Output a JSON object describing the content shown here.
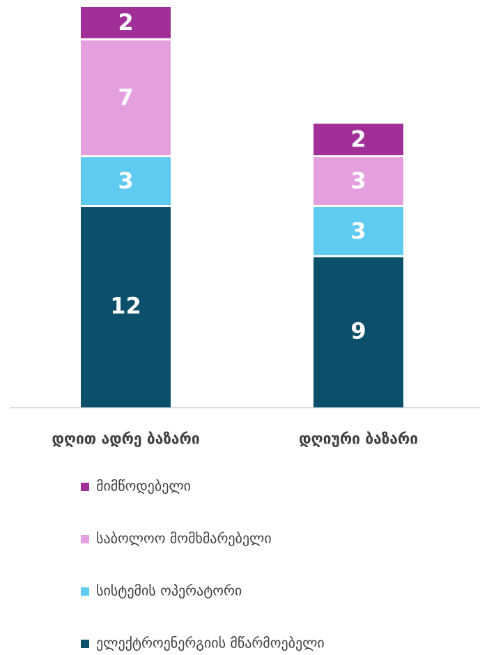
{
  "chart_data": {
    "type": "stacked_bar",
    "categories": [
      "დღით ადრე ბაზარი",
      "დღიური ბაზარი"
    ],
    "series": [
      {
        "name": "ელექტროენერგიის მწარმოებელი",
        "color": "#0b4f6a",
        "values": [
          12,
          9
        ]
      },
      {
        "name": "სისტემის ოპერატორი",
        "color": "#5fcbf1",
        "values": [
          3,
          3
        ]
      },
      {
        "name": "საბოლოო მომხმარებელი",
        "color": "#e4a0de",
        "values": [
          7,
          3
        ]
      },
      {
        "name": "მიმწოდებელი",
        "color": "#a12f98",
        "values": [
          2,
          2
        ]
      }
    ]
  }
}
